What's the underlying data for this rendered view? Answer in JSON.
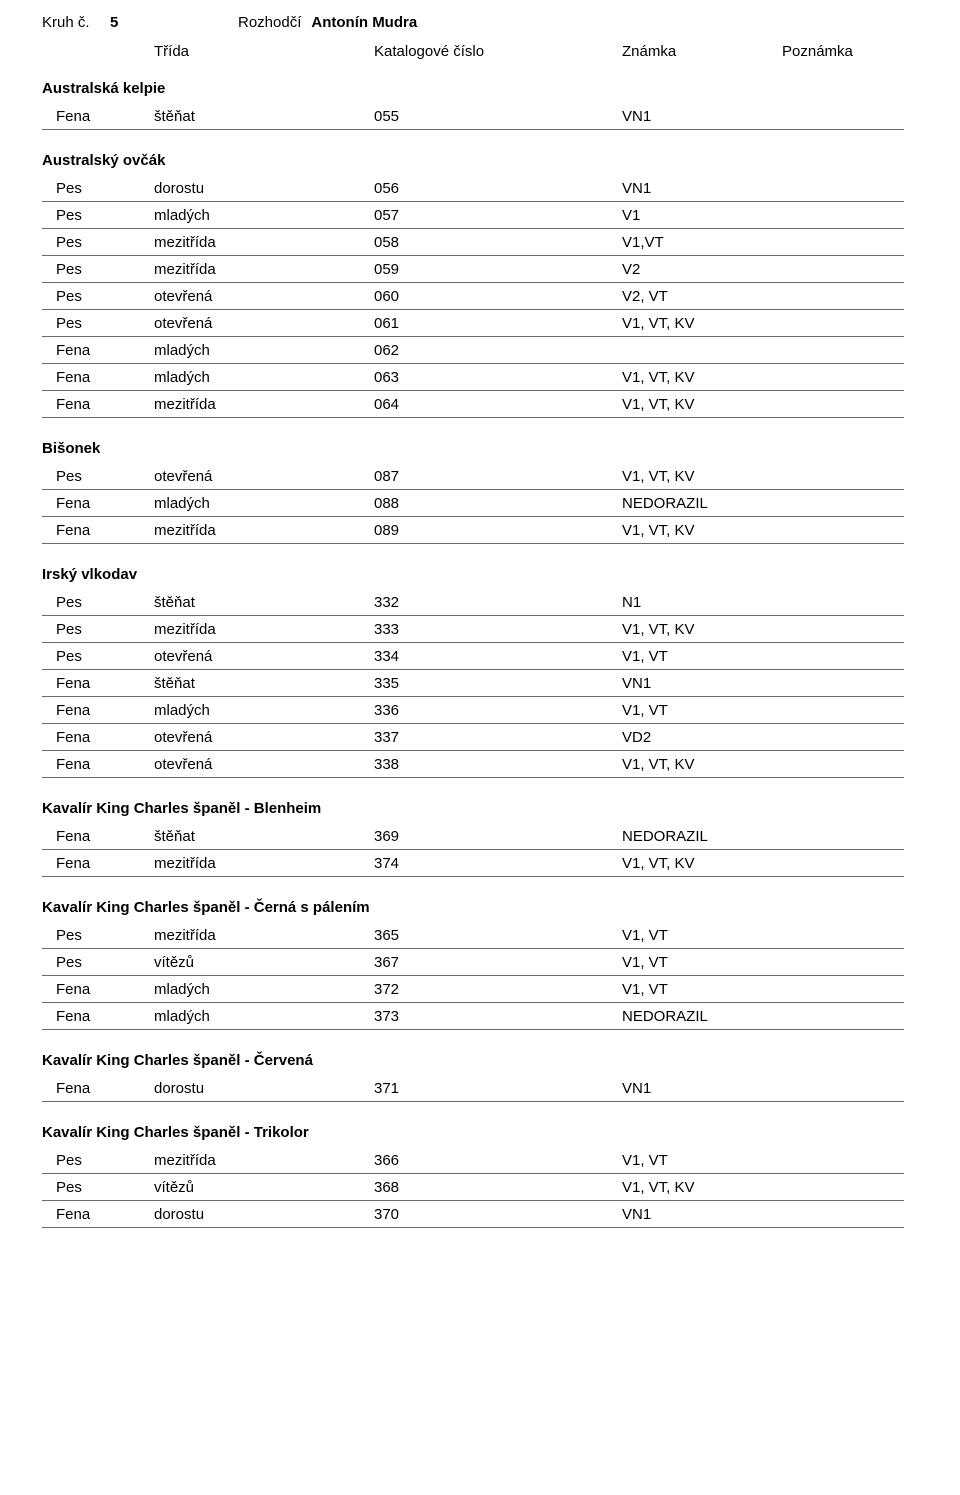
{
  "header": {
    "kruh_label": "Kruh č.",
    "kruh_num": "5",
    "rozhodci_label": "Rozhodčí",
    "rozhodci_name": "Antonín Mudra"
  },
  "col_headers": {
    "trida": "Třída",
    "katalog": "Katalogové číslo",
    "znamka": "Známka",
    "poznamka": "Poznámka"
  },
  "sections": [
    {
      "title": "Australská kelpie",
      "rows": [
        {
          "sex": "Fena",
          "trida": "štěňat",
          "num": "055",
          "znamka": "VN1"
        }
      ]
    },
    {
      "title": "Australský ovčák",
      "rows": [
        {
          "sex": "Pes",
          "trida": "dorostu",
          "num": "056",
          "znamka": "VN1"
        },
        {
          "sex": "Pes",
          "trida": "mladých",
          "num": "057",
          "znamka": "V1"
        },
        {
          "sex": "Pes",
          "trida": "mezitřída",
          "num": "058",
          "znamka": "V1,VT"
        },
        {
          "sex": "Pes",
          "trida": "mezitřída",
          "num": "059",
          "znamka": "V2"
        },
        {
          "sex": "Pes",
          "trida": "otevřená",
          "num": "060",
          "znamka": "V2, VT"
        },
        {
          "sex": "Pes",
          "trida": "otevřená",
          "num": "061",
          "znamka": "V1, VT, KV"
        },
        {
          "sex": "Fena",
          "trida": "mladých",
          "num": "062",
          "znamka": ""
        },
        {
          "sex": "Fena",
          "trida": "mladých",
          "num": "063",
          "znamka": "V1, VT, KV"
        },
        {
          "sex": "Fena",
          "trida": "mezitřída",
          "num": "064",
          "znamka": "V1, VT, KV"
        }
      ]
    },
    {
      "title": "Bišonek",
      "rows": [
        {
          "sex": "Pes",
          "trida": "otevřená",
          "num": "087",
          "znamka": "V1, VT, KV"
        },
        {
          "sex": "Fena",
          "trida": "mladých",
          "num": "088",
          "znamka": "NEDORAZIL"
        },
        {
          "sex": "Fena",
          "trida": "mezitřída",
          "num": "089",
          "znamka": "V1, VT, KV"
        }
      ]
    },
    {
      "title": "Irský vlkodav",
      "rows": [
        {
          "sex": "Pes",
          "trida": "štěňat",
          "num": "332",
          "znamka": "N1"
        },
        {
          "sex": "Pes",
          "trida": "mezitřída",
          "num": "333",
          "znamka": "V1, VT, KV"
        },
        {
          "sex": "Pes",
          "trida": "otevřená",
          "num": "334",
          "znamka": "V1, VT"
        },
        {
          "sex": "Fena",
          "trida": "štěňat",
          "num": "335",
          "znamka": "VN1"
        },
        {
          "sex": "Fena",
          "trida": "mladých",
          "num": "336",
          "znamka": "V1, VT"
        },
        {
          "sex": "Fena",
          "trida": "otevřená",
          "num": "337",
          "znamka": "VD2"
        },
        {
          "sex": "Fena",
          "trida": "otevřená",
          "num": "338",
          "znamka": "V1, VT, KV"
        }
      ]
    },
    {
      "title": "Kavalír King Charles španěl - Blenheim",
      "rows": [
        {
          "sex": "Fena",
          "trida": "štěňat",
          "num": "369",
          "znamka": "NEDORAZIL"
        },
        {
          "sex": "Fena",
          "trida": "mezitřída",
          "num": "374",
          "znamka": "V1, VT, KV"
        }
      ]
    },
    {
      "title": "Kavalír King Charles španěl - Černá s pálením",
      "rows": [
        {
          "sex": "Pes",
          "trida": "mezitřída",
          "num": "365",
          "znamka": "V1, VT"
        },
        {
          "sex": "Pes",
          "trida": "vítězů",
          "num": "367",
          "znamka": "V1, VT"
        },
        {
          "sex": "Fena",
          "trida": "mladých",
          "num": "372",
          "znamka": "V1, VT"
        },
        {
          "sex": "Fena",
          "trida": "mladých",
          "num": "373",
          "znamka": "NEDORAZIL"
        }
      ]
    },
    {
      "title": "Kavalír King Charles španěl - Červená",
      "rows": [
        {
          "sex": "Fena",
          "trida": "dorostu",
          "num": "371",
          "znamka": "VN1"
        }
      ]
    },
    {
      "title": "Kavalír King Charles španěl - Trikolor",
      "rows": [
        {
          "sex": "Pes",
          "trida": "mezitřída",
          "num": "366",
          "znamka": "V1, VT"
        },
        {
          "sex": "Pes",
          "trida": "vítězů",
          "num": "368",
          "znamka": "V1, VT, KV"
        },
        {
          "sex": "Fena",
          "trida": "dorostu",
          "num": "370",
          "znamka": "VN1"
        }
      ]
    }
  ]
}
